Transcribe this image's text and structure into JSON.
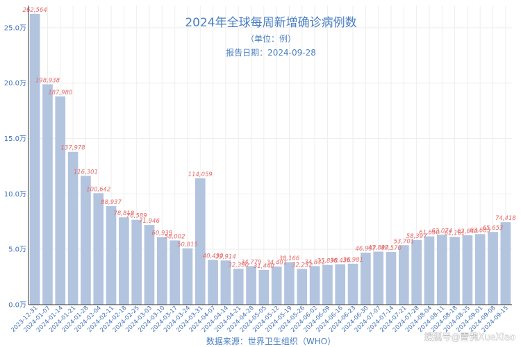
{
  "chart_data": {
    "type": "bar",
    "title": "2024年全球每周新增确诊病例数",
    "subtitle": "（单位：例）",
    "report_date": "报告日期：2024-09-28",
    "xlabel": "数据来源：世界卫生组织（WHO）",
    "ylabel": "",
    "ylim": [
      0,
      270000
    ],
    "yticks": [
      0,
      50000,
      100000,
      150000,
      200000,
      250000
    ],
    "ytick_labels": [
      "0.0万",
      "5.0万",
      "10.0万",
      "15.0万",
      "20.0万",
      "25.0万"
    ],
    "grid": true,
    "categories": [
      "2023-12-31",
      "2024-01-07",
      "2024-01-14",
      "2024-01-21",
      "2024-01-28",
      "2024-02-04",
      "2024-02-11",
      "2024-02-18",
      "2024-02-25",
      "2024-03-03",
      "2024-03-10",
      "2024-03-17",
      "2024-03-24",
      "2024-03-31",
      "2024-04-07",
      "2024-04-14",
      "2024-04-21",
      "2024-04-28",
      "2024-05-05",
      "2024-05-12",
      "2024-05-19",
      "2024-05-26",
      "2024-06-02",
      "2024-06-09",
      "2024-06-16",
      "2024-06-23",
      "2024-06-30",
      "2024-07-07",
      "2024-07-14",
      "2024-07-21",
      "2024-07-28",
      "2024-08-04",
      "2024-08-11",
      "2024-08-18",
      "2024-08-25",
      "2024-09-01",
      "2024-09-08",
      "2024-09-15"
    ],
    "tick_labels": [
      "2023-12-31",
      "2024-01-07",
      "2024-01-14",
      "2024-01-21",
      "2024-01-28",
      "2024-02-04",
      "2024-02-11",
      "2024-02-18",
      "2024-02-25",
      "2024-03-03",
      "2024-03-10",
      "2024-03-17",
      "2024-03-24",
      "2024-03-31",
      "2024-04-07",
      "2024-04-14",
      "2024-04-21",
      "2024-04-28",
      "2024-05-05",
      "2024-05-12",
      "2024-05-19",
      "2024-05-26",
      "2024-06-02",
      "2024-06-09",
      "2024-06-16",
      "2024-06-23",
      "2024-06-30",
      "2024-07-07",
      "2024-07-14",
      "2024-07-21",
      "2024-07-28",
      "2024-08-04",
      "2024-08-11",
      "2024-08-18",
      "2024-08-25",
      "2024-09-01",
      "2024-09-08",
      "2024-09-15"
    ],
    "values": [
      262564,
      198938,
      187980,
      137978,
      116301,
      100642,
      88937,
      78818,
      76589,
      71946,
      60939,
      58002,
      50815,
      114059,
      40430,
      39914,
      32390,
      34779,
      31440,
      34401,
      38166,
      32232,
      34831,
      35898,
      36436,
      36981,
      46997,
      47890,
      47570,
      53701,
      58397,
      61650,
      63074,
      61161,
      62640,
      63685,
      65653,
      74418
    ],
    "value_labels": [
      "262,564",
      "198,938",
      "187,980",
      "137,978",
      "116,301",
      "100,642",
      "88,937",
      "78,818",
      "76,589",
      "71,946",
      "60,939",
      "58,002",
      "50,815",
      "114,059",
      "40,430",
      "39,914",
      "32,390",
      "34,779",
      "31,440",
      "34,401",
      "38,166",
      "32,232",
      "34,831",
      "35,898",
      "36,436",
      "36,981",
      "46,997",
      "47,890",
      "47,570",
      "53,701",
      "58,397",
      "61,650",
      "63,074",
      "61,161",
      "62,640",
      "63,685",
      "65,653",
      "74,418"
    ],
    "colors": {
      "bar": "#b3c4df",
      "value_label": "#e46b6b",
      "text": "#4a7fc1"
    }
  },
  "watermark": "搜狐号@雪鸮XueXiao"
}
